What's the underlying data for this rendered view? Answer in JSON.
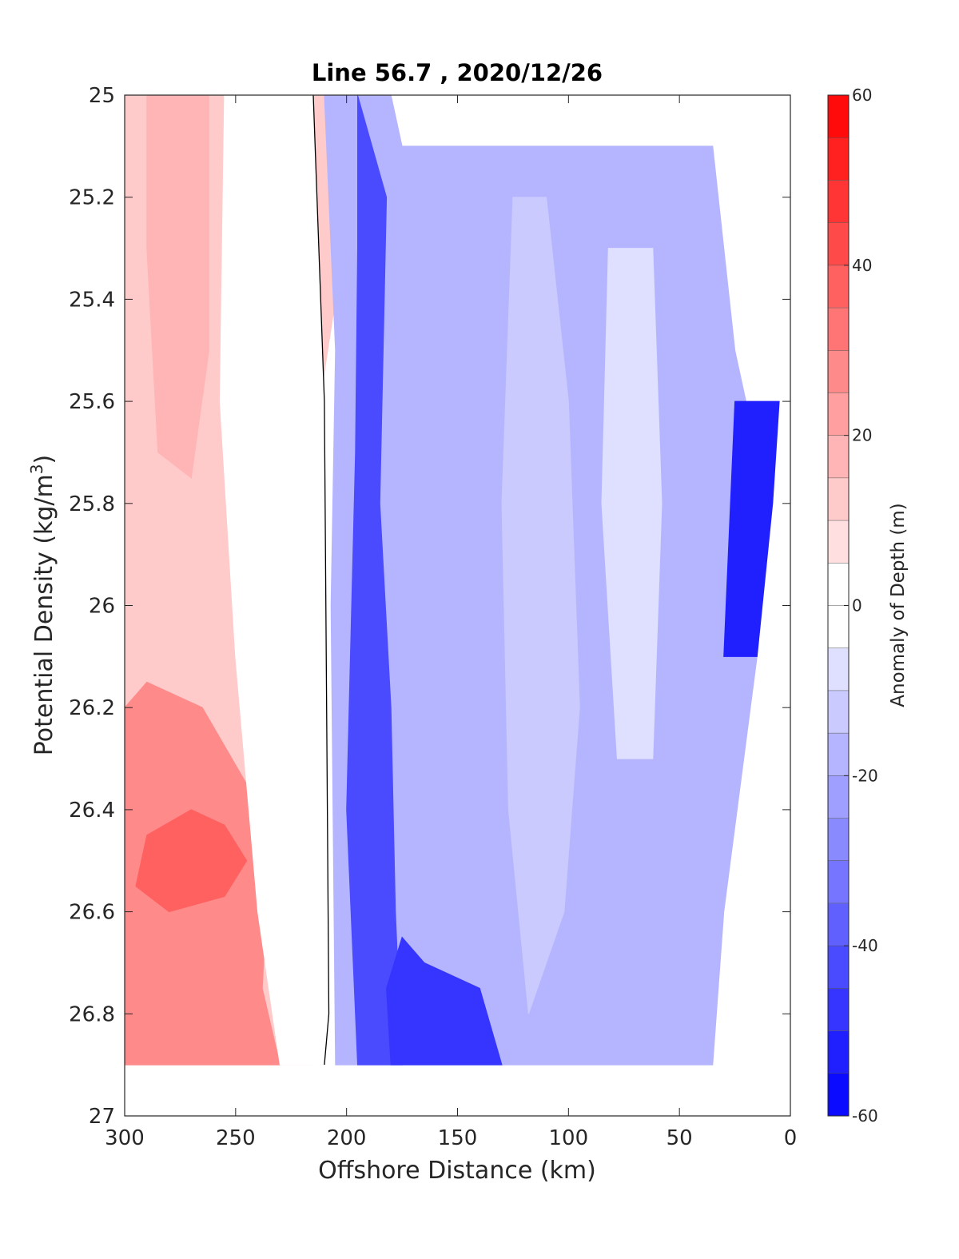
{
  "chart_data": {
    "type": "heatmap",
    "subtype": "filled-contour",
    "title": "Line 56.7 , 2020/12/26",
    "xlabel": "Offshore Distance (km)",
    "ylabel_main": "Potential Density (kg/m",
    "ylabel_sup": "3",
    "ylabel_end": ")",
    "xlim": [
      300,
      0
    ],
    "x_reversed": true,
    "ylim": [
      25,
      27
    ],
    "y_reversed": true,
    "xticks": [
      300,
      250,
      200,
      150,
      100,
      50,
      0
    ],
    "yticks": [
      25,
      25.2,
      25.4,
      25.6,
      25.8,
      26,
      26.2,
      26.4,
      26.6,
      26.8,
      27
    ],
    "xtick_labels": [
      "300",
      "250",
      "200",
      "150",
      "100",
      "50",
      "0"
    ],
    "ytick_labels": [
      "25",
      "25.2",
      "25.4",
      "25.6",
      "25.8",
      "26",
      "26.2",
      "26.4",
      "26.6",
      "26.8",
      "27"
    ],
    "colorbar": {
      "label": "Anomaly of Depth (m)",
      "range": [
        -60,
        60
      ],
      "step": 5,
      "ticks": [
        60,
        40,
        20,
        0,
        -20,
        -40,
        -60
      ],
      "tick_labels": [
        "60",
        "40",
        "20",
        "0",
        "-20",
        "-40",
        "-60"
      ],
      "colormap": "blue-white-red",
      "color_min": "#0000ff",
      "color_zero": "#ffffff",
      "color_max": "#ff0000"
    },
    "zero_contour_color": "#000000",
    "regions": [
      {
        "name": "offshore-positive",
        "value": 12,
        "points": [
          [
            300,
            25
          ],
          [
            210,
            25
          ],
          [
            205,
            25.4
          ],
          [
            212,
            25.6
          ],
          [
            218,
            26.8
          ],
          [
            215,
            26.9
          ],
          [
            300,
            26.9
          ]
        ]
      },
      {
        "name": "max-core-upper",
        "value": 17,
        "points": [
          [
            290,
            25
          ],
          [
            262,
            25
          ],
          [
            262,
            25.5
          ],
          [
            270,
            25.75
          ],
          [
            285,
            25.7
          ],
          [
            290,
            25.3
          ]
        ]
      },
      {
        "name": "max-core-lower",
        "value": 27,
        "points": [
          [
            300,
            26.2
          ],
          [
            290,
            26.15
          ],
          [
            265,
            26.2
          ],
          [
            245,
            26.35
          ],
          [
            235,
            26.5
          ],
          [
            238,
            26.75
          ],
          [
            230,
            26.9
          ],
          [
            300,
            26.9
          ]
        ]
      },
      {
        "name": "max-core-peak",
        "value": 37,
        "points": [
          [
            290,
            26.45
          ],
          [
            270,
            26.4
          ],
          [
            255,
            26.43
          ],
          [
            245,
            26.5
          ],
          [
            255,
            26.57
          ],
          [
            280,
            26.6
          ],
          [
            295,
            26.55
          ]
        ]
      },
      {
        "name": "zero-band",
        "value": 0,
        "points": [
          [
            255,
            25
          ],
          [
            215,
            25
          ],
          [
            210,
            25.6
          ],
          [
            208,
            26.8
          ],
          [
            210,
            26.9
          ],
          [
            230,
            26.9
          ],
          [
            240,
            26.6
          ],
          [
            250,
            26.1
          ],
          [
            257,
            25.6
          ]
        ]
      },
      {
        "name": "onshore-negative",
        "value": -20,
        "points": [
          [
            210,
            25
          ],
          [
            180,
            25
          ],
          [
            175,
            25.1
          ],
          [
            35,
            25.1
          ],
          [
            25,
            25.5
          ],
          [
            10,
            25.8
          ],
          [
            15,
            26.1
          ],
          [
            30,
            26.6
          ],
          [
            35,
            26.9
          ],
          [
            205,
            26.9
          ],
          [
            207,
            26.0
          ],
          [
            205,
            25.5
          ]
        ]
      },
      {
        "name": "nearshore-strong",
        "value": -42,
        "points": [
          [
            195,
            25
          ],
          [
            182,
            25.2
          ],
          [
            185,
            25.8
          ],
          [
            180,
            26.2
          ],
          [
            178,
            26.6
          ],
          [
            175,
            26.9
          ],
          [
            195,
            26.9
          ],
          [
            200,
            26.4
          ],
          [
            196,
            25.7
          ],
          [
            195,
            25.3
          ]
        ]
      },
      {
        "name": "deep-strong",
        "value": -47,
        "points": [
          [
            175,
            26.65
          ],
          [
            165,
            26.7
          ],
          [
            140,
            26.75
          ],
          [
            130,
            26.9
          ],
          [
            180,
            26.9
          ],
          [
            182,
            26.75
          ]
        ]
      },
      {
        "name": "light-core-mid",
        "value": -12,
        "points": [
          [
            125,
            25.2
          ],
          [
            110,
            25.2
          ],
          [
            100,
            25.6
          ],
          [
            95,
            26.2
          ],
          [
            102,
            26.6
          ],
          [
            118,
            26.8
          ],
          [
            127,
            26.4
          ],
          [
            130,
            25.8
          ]
        ]
      },
      {
        "name": "light-core-east",
        "value": -8,
        "points": [
          [
            82,
            25.3
          ],
          [
            62,
            25.3
          ],
          [
            58,
            25.8
          ],
          [
            62,
            26.3
          ],
          [
            78,
            26.3
          ],
          [
            85,
            25.8
          ]
        ]
      },
      {
        "name": "coast-edge",
        "value": -55,
        "points": [
          [
            25,
            25.6
          ],
          [
            5,
            25.6
          ],
          [
            8,
            25.8
          ],
          [
            15,
            26.1
          ],
          [
            30,
            26.1
          ]
        ]
      }
    ]
  }
}
